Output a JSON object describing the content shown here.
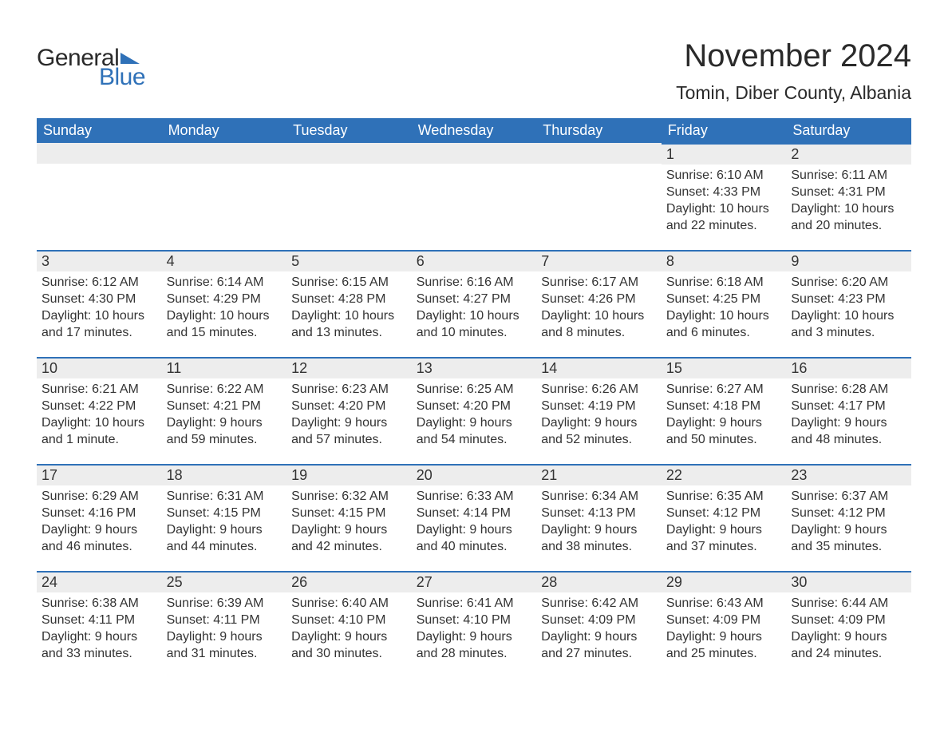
{
  "brand": {
    "part1": "General",
    "part2": "Blue",
    "accent_color": "#2f71b8"
  },
  "title": "November 2024",
  "location": "Tomin, Diber County, Albania",
  "colors": {
    "header_bg": "#2f71b8",
    "header_text": "#ffffff",
    "daynum_bg": "#ededed",
    "row_border": "#2f71b8",
    "body_text": "#333333",
    "page_bg": "#ffffff"
  },
  "typography": {
    "title_fontsize": 40,
    "location_fontsize": 23,
    "header_fontsize": 18,
    "daynum_fontsize": 18,
    "detail_fontsize": 16,
    "font_family": "Arial"
  },
  "layout": {
    "columns": 7,
    "rows": 5,
    "first_day_column_index": 5
  },
  "weekdays": [
    "Sunday",
    "Monday",
    "Tuesday",
    "Wednesday",
    "Thursday",
    "Friday",
    "Saturday"
  ],
  "labels": {
    "sunrise": "Sunrise:",
    "sunset": "Sunset:",
    "daylight": "Daylight:"
  },
  "days": [
    {
      "n": 1,
      "sunrise": "6:10 AM",
      "sunset": "4:33 PM",
      "daylight": "10 hours and 22 minutes."
    },
    {
      "n": 2,
      "sunrise": "6:11 AM",
      "sunset": "4:31 PM",
      "daylight": "10 hours and 20 minutes."
    },
    {
      "n": 3,
      "sunrise": "6:12 AM",
      "sunset": "4:30 PM",
      "daylight": "10 hours and 17 minutes."
    },
    {
      "n": 4,
      "sunrise": "6:14 AM",
      "sunset": "4:29 PM",
      "daylight": "10 hours and 15 minutes."
    },
    {
      "n": 5,
      "sunrise": "6:15 AM",
      "sunset": "4:28 PM",
      "daylight": "10 hours and 13 minutes."
    },
    {
      "n": 6,
      "sunrise": "6:16 AM",
      "sunset": "4:27 PM",
      "daylight": "10 hours and 10 minutes."
    },
    {
      "n": 7,
      "sunrise": "6:17 AM",
      "sunset": "4:26 PM",
      "daylight": "10 hours and 8 minutes."
    },
    {
      "n": 8,
      "sunrise": "6:18 AM",
      "sunset": "4:25 PM",
      "daylight": "10 hours and 6 minutes."
    },
    {
      "n": 9,
      "sunrise": "6:20 AM",
      "sunset": "4:23 PM",
      "daylight": "10 hours and 3 minutes."
    },
    {
      "n": 10,
      "sunrise": "6:21 AM",
      "sunset": "4:22 PM",
      "daylight": "10 hours and 1 minute."
    },
    {
      "n": 11,
      "sunrise": "6:22 AM",
      "sunset": "4:21 PM",
      "daylight": "9 hours and 59 minutes."
    },
    {
      "n": 12,
      "sunrise": "6:23 AM",
      "sunset": "4:20 PM",
      "daylight": "9 hours and 57 minutes."
    },
    {
      "n": 13,
      "sunrise": "6:25 AM",
      "sunset": "4:20 PM",
      "daylight": "9 hours and 54 minutes."
    },
    {
      "n": 14,
      "sunrise": "6:26 AM",
      "sunset": "4:19 PM",
      "daylight": "9 hours and 52 minutes."
    },
    {
      "n": 15,
      "sunrise": "6:27 AM",
      "sunset": "4:18 PM",
      "daylight": "9 hours and 50 minutes."
    },
    {
      "n": 16,
      "sunrise": "6:28 AM",
      "sunset": "4:17 PM",
      "daylight": "9 hours and 48 minutes."
    },
    {
      "n": 17,
      "sunrise": "6:29 AM",
      "sunset": "4:16 PM",
      "daylight": "9 hours and 46 minutes."
    },
    {
      "n": 18,
      "sunrise": "6:31 AM",
      "sunset": "4:15 PM",
      "daylight": "9 hours and 44 minutes."
    },
    {
      "n": 19,
      "sunrise": "6:32 AM",
      "sunset": "4:15 PM",
      "daylight": "9 hours and 42 minutes."
    },
    {
      "n": 20,
      "sunrise": "6:33 AM",
      "sunset": "4:14 PM",
      "daylight": "9 hours and 40 minutes."
    },
    {
      "n": 21,
      "sunrise": "6:34 AM",
      "sunset": "4:13 PM",
      "daylight": "9 hours and 38 minutes."
    },
    {
      "n": 22,
      "sunrise": "6:35 AM",
      "sunset": "4:12 PM",
      "daylight": "9 hours and 37 minutes."
    },
    {
      "n": 23,
      "sunrise": "6:37 AM",
      "sunset": "4:12 PM",
      "daylight": "9 hours and 35 minutes."
    },
    {
      "n": 24,
      "sunrise": "6:38 AM",
      "sunset": "4:11 PM",
      "daylight": "9 hours and 33 minutes."
    },
    {
      "n": 25,
      "sunrise": "6:39 AM",
      "sunset": "4:11 PM",
      "daylight": "9 hours and 31 minutes."
    },
    {
      "n": 26,
      "sunrise": "6:40 AM",
      "sunset": "4:10 PM",
      "daylight": "9 hours and 30 minutes."
    },
    {
      "n": 27,
      "sunrise": "6:41 AM",
      "sunset": "4:10 PM",
      "daylight": "9 hours and 28 minutes."
    },
    {
      "n": 28,
      "sunrise": "6:42 AM",
      "sunset": "4:09 PM",
      "daylight": "9 hours and 27 minutes."
    },
    {
      "n": 29,
      "sunrise": "6:43 AM",
      "sunset": "4:09 PM",
      "daylight": "9 hours and 25 minutes."
    },
    {
      "n": 30,
      "sunrise": "6:44 AM",
      "sunset": "4:09 PM",
      "daylight": "9 hours and 24 minutes."
    }
  ]
}
